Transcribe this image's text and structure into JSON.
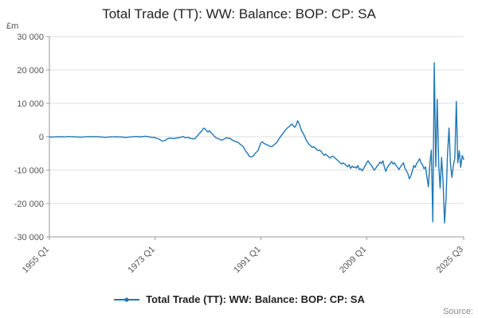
{
  "page": {
    "title": "Total Trade (TT): WW: Balance: BOP: CP: SA",
    "y_axis_unit": "£m",
    "source_label": "Source:"
  },
  "legend": {
    "label": "Total Trade (TT): WW: Balance: BOP: CP: SA"
  },
  "chart_data": {
    "type": "line",
    "title": "Total Trade (TT): WW: Balance: BOP: CP: SA",
    "xlabel": "",
    "ylabel": "£m",
    "ylim": [
      -30000,
      30000
    ],
    "grid": "horizontal",
    "legend_position": "bottom",
    "color": "#1f77b4",
    "frequency": "quarterly",
    "x_start": "1955 Q1",
    "x_end": "2025 Q3",
    "y_ticks": [
      {
        "value": 30000,
        "label": "30 000"
      },
      {
        "value": 20000,
        "label": "20 000"
      },
      {
        "value": 10000,
        "label": "10 000"
      },
      {
        "value": 0,
        "label": "0"
      },
      {
        "value": -10000,
        "label": "-10 000"
      },
      {
        "value": -20000,
        "label": "-20 000"
      },
      {
        "value": -30000,
        "label": "-30 000"
      }
    ],
    "x_ticks": [
      {
        "index": 0,
        "label": "1955 Q1"
      },
      {
        "index": 72,
        "label": "1973 Q1"
      },
      {
        "index": 144,
        "label": "1991 Q1"
      },
      {
        "index": 216,
        "label": "2009 Q1"
      },
      {
        "index": 282,
        "label": "2025 Q3"
      }
    ],
    "series": [
      {
        "name": "Total Trade (TT): WW: Balance: BOP: CP: SA",
        "values": [
          -50,
          -80,
          -60,
          -90,
          -20,
          10,
          -30,
          0,
          -10,
          30,
          -20,
          -40,
          40,
          60,
          30,
          20,
          10,
          -20,
          -40,
          -60,
          -100,
          -130,
          -90,
          -70,
          -30,
          0,
          20,
          40,
          30,
          10,
          0,
          20,
          30,
          0,
          -30,
          -40,
          -120,
          -150,
          -180,
          -160,
          -60,
          -40,
          -20,
          -50,
          -30,
          0,
          30,
          -60,
          -80,
          -60,
          -120,
          -200,
          -180,
          -160,
          -100,
          -80,
          -20,
          30,
          40,
          60,
          30,
          0,
          20,
          10,
          80,
          120,
          100,
          60,
          -60,
          -120,
          -180,
          -200,
          -300,
          -450,
          -600,
          -800,
          -1100,
          -1300,
          -1200,
          -1100,
          -700,
          -500,
          -400,
          -450,
          -500,
          -600,
          -400,
          -350,
          -300,
          -200,
          -100,
          100,
          -200,
          -300,
          -250,
          -200,
          -600,
          -500,
          -700,
          -600,
          -100,
          400,
          900,
          1400,
          1900,
          2600,
          2300,
          1800,
          1400,
          1800,
          1200,
          800,
          300,
          -200,
          -400,
          -600,
          -800,
          -1000,
          -900,
          -700,
          -400,
          -300,
          -500,
          -400,
          -900,
          -1100,
          -1300,
          -1500,
          -1600,
          -1900,
          -2300,
          -2600,
          -3000,
          -3800,
          -4500,
          -5000,
          -5800,
          -6100,
          -5900,
          -5700,
          -5000,
          -4600,
          -4200,
          -3000,
          -1800,
          -1500,
          -2000,
          -2200,
          -2400,
          -2600,
          -2800,
          -3000,
          -2800,
          -2400,
          -2000,
          -1600,
          -800,
          -200,
          400,
          1000,
          1600,
          2200,
          2600,
          3000,
          3400,
          3800,
          3300,
          2800,
          3500,
          4800,
          3900,
          2600,
          1500,
          800,
          -200,
          -1200,
          -1800,
          -2400,
          -2800,
          -3200,
          -3000,
          -3400,
          -3800,
          -4200,
          -4000,
          -4400,
          -5000,
          -5600,
          -5200,
          -5600,
          -6000,
          -6400,
          -6000,
          -5800,
          -6200,
          -6600,
          -7000,
          -7400,
          -7800,
          -8200,
          -7800,
          -8200,
          -8600,
          -9000,
          -8400,
          -9500,
          -8800,
          -9200,
          -9000,
          -9400,
          -8600,
          -9800,
          -9600,
          -10200,
          -9400,
          -8600,
          -7800,
          -7200,
          -8000,
          -8400,
          -9200,
          -10000,
          -9600,
          -8800,
          -8400,
          -7600,
          -8000,
          -7200,
          -9000,
          -10400,
          -9200,
          -8600,
          -8000,
          -7400,
          -8200,
          -7800,
          -8600,
          -9200,
          -9800,
          -9000,
          -8400,
          -7800,
          -9400,
          -10200,
          -11000,
          -12600,
          -11800,
          -10400,
          -8600,
          -9200,
          -8000,
          -7400,
          -6600,
          -7800,
          -8400,
          -9600,
          -9000,
          -12000,
          -15000,
          -8000,
          -4000,
          -25500,
          22200,
          -9000,
          11200,
          -8600,
          -15400,
          -6200,
          -13800,
          -25800,
          -18600,
          -5400,
          2600,
          -7800,
          -12200,
          -8600,
          -6400,
          10600,
          -7800,
          -4200,
          -9200,
          -5600,
          -6800
        ]
      }
    ]
  }
}
